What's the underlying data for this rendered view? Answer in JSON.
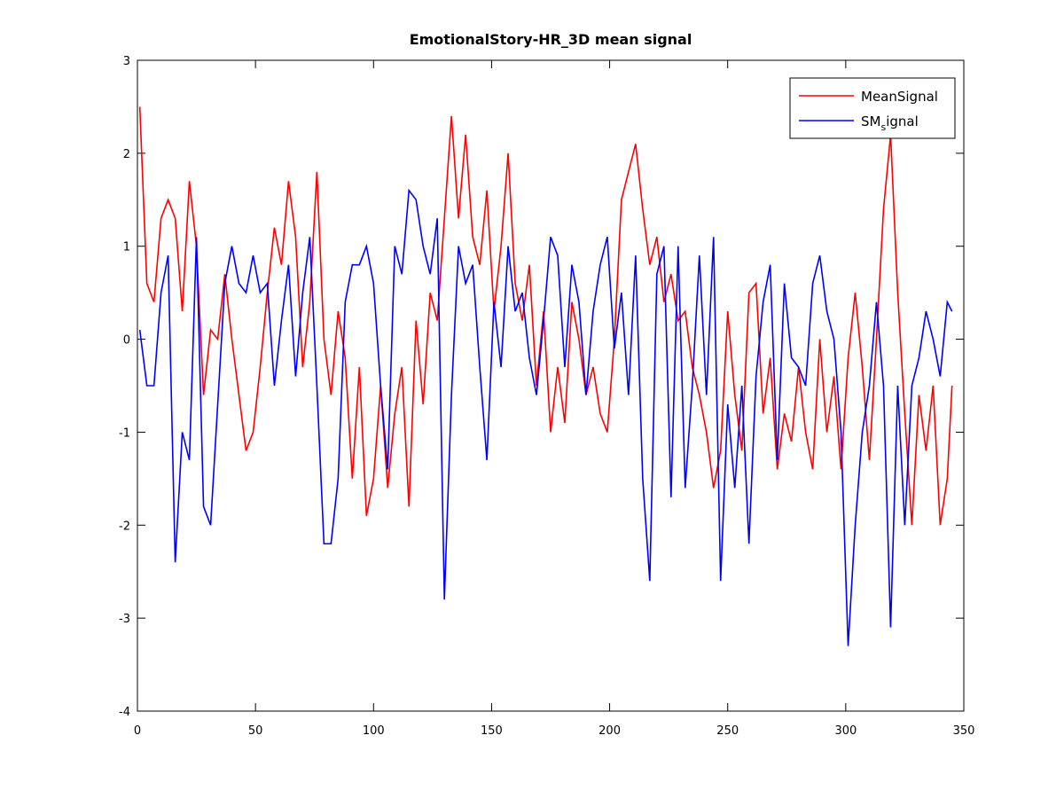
{
  "chart_data": {
    "type": "line",
    "title": "EmotionalStory-HR_3D mean signal",
    "x": [
      1,
      4,
      7,
      10,
      13,
      16,
      19,
      22,
      25,
      28,
      31,
      34,
      37,
      40,
      43,
      46,
      49,
      52,
      55,
      58,
      61,
      64,
      67,
      70,
      73,
      76,
      79,
      82,
      85,
      88,
      91,
      94,
      97,
      100,
      103,
      106,
      109,
      112,
      115,
      118,
      121,
      124,
      127,
      130,
      133,
      136,
      139,
      142,
      145,
      148,
      151,
      154,
      157,
      160,
      163,
      166,
      169,
      172,
      175,
      178,
      181,
      184,
      187,
      190,
      193,
      196,
      199,
      202,
      205,
      208,
      211,
      214,
      217,
      220,
      223,
      226,
      229,
      232,
      235,
      238,
      241,
      244,
      247,
      250,
      253,
      256,
      259,
      262,
      265,
      268,
      271,
      274,
      277,
      280,
      283,
      286,
      289,
      292,
      295,
      298,
      301,
      304,
      307,
      310,
      313,
      316,
      319,
      322,
      325,
      328,
      331,
      334,
      337,
      340,
      343,
      345
    ],
    "series": [
      {
        "name": "MeanSignal",
        "color": "#ff0000",
        "values": [
          2.5,
          0.6,
          0.4,
          1.3,
          1.5,
          1.3,
          0.3,
          1.7,
          1.0,
          -0.6,
          0.1,
          0.0,
          0.7,
          0.0,
          -0.6,
          -1.2,
          -1.0,
          -0.3,
          0.5,
          1.2,
          0.8,
          1.7,
          1.1,
          -0.3,
          0.4,
          1.8,
          0.0,
          -0.6,
          0.3,
          -0.2,
          -1.5,
          -0.3,
          -1.9,
          -1.5,
          -0.5,
          -1.6,
          -0.8,
          -0.3,
          -1.8,
          0.2,
          -0.7,
          0.5,
          0.2,
          1.3,
          2.4,
          1.3,
          2.2,
          1.1,
          0.8,
          1.6,
          0.3,
          1.0,
          2.0,
          0.6,
          0.2,
          0.8,
          -0.5,
          0.3,
          -1.0,
          -0.3,
          -0.9,
          0.4,
          0.0,
          -0.6,
          -0.3,
          -0.8,
          -1.0,
          0.0,
          1.5,
          1.8,
          2.1,
          1.4,
          0.8,
          1.1,
          0.4,
          0.7,
          0.2,
          0.3,
          -0.3,
          -0.6,
          -1.0,
          -1.6,
          -1.2,
          0.3,
          -0.6,
          -1.2,
          0.5,
          0.6,
          -0.8,
          -0.2,
          -1.4,
          -0.8,
          -1.1,
          -0.3,
          -1.0,
          -1.4,
          0.0,
          -1.0,
          -0.4,
          -1.4,
          -0.2,
          0.5,
          -0.3,
          -1.3,
          0.0,
          1.4,
          2.2,
          0.5,
          -0.8,
          -2.0,
          -0.6,
          -1.2,
          -0.5,
          -2.0,
          -1.5,
          -0.5
        ]
      },
      {
        "name": "SM_signal",
        "color": "#0000ff",
        "values": [
          0.1,
          -0.5,
          -0.5,
          0.5,
          0.9,
          -2.4,
          -1.0,
          -1.3,
          1.1,
          -1.8,
          -2.0,
          -0.7,
          0.6,
          1.0,
          0.6,
          0.5,
          0.9,
          0.5,
          0.6,
          -0.5,
          0.2,
          0.8,
          -0.4,
          0.5,
          1.1,
          -0.5,
          -2.2,
          -2.2,
          -1.5,
          0.4,
          0.8,
          0.8,
          1.0,
          0.6,
          -0.5,
          -1.4,
          1.0,
          0.7,
          1.6,
          1.5,
          1.0,
          0.7,
          1.3,
          -2.8,
          -0.6,
          1.0,
          0.6,
          0.8,
          -0.3,
          -1.3,
          0.4,
          -0.3,
          1.0,
          0.3,
          0.5,
          -0.2,
          -0.6,
          0.2,
          1.1,
          0.9,
          -0.3,
          0.8,
          0.4,
          -0.6,
          0.3,
          0.8,
          1.1,
          -0.1,
          0.5,
          -0.6,
          0.9,
          -1.5,
          -2.6,
          0.7,
          1.0,
          -1.7,
          1.0,
          -1.6,
          -0.5,
          0.9,
          -0.6,
          1.1,
          -2.6,
          -0.7,
          -1.6,
          -0.5,
          -2.2,
          -0.4,
          0.4,
          0.8,
          -1.3,
          0.6,
          -0.2,
          -0.3,
          -0.5,
          0.6,
          0.9,
          0.3,
          0.0,
          -1.0,
          -3.3,
          -2.0,
          -1.0,
          -0.5,
          0.4,
          -0.5,
          -3.1,
          -0.5,
          -2.0,
          -0.5,
          -0.2,
          0.3,
          0.0,
          -0.4,
          0.4,
          0.3
        ]
      }
    ],
    "xlim": [
      0,
      350
    ],
    "xticks": [
      0,
      50,
      100,
      150,
      200,
      250,
      300,
      350
    ],
    "ylim": [
      -4,
      3
    ],
    "yticks": [
      -4,
      -3,
      -2,
      -1,
      0,
      1,
      2,
      3
    ],
    "legend": "northeast"
  }
}
